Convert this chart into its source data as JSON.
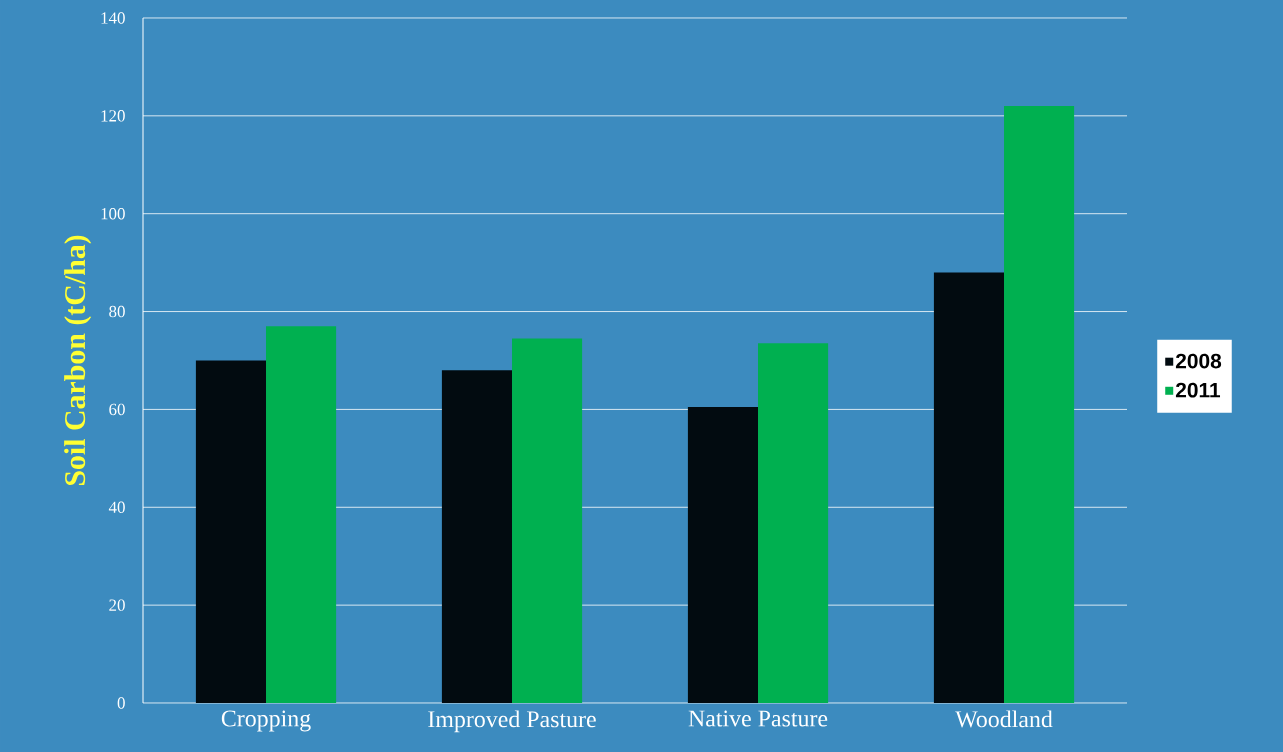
{
  "chart_data": {
    "type": "bar",
    "ylabel": "Soil Carbon (tC/ha)",
    "categories": [
      "Cropping",
      "Improved Pasture",
      "Native Pasture",
      "Woodland"
    ],
    "series": [
      {
        "name": "2008",
        "color": "#020b10",
        "values": [
          70,
          68,
          60.5,
          88
        ]
      },
      {
        "name": "2011",
        "color": "#00b050",
        "values": [
          77,
          74.5,
          73.5,
          122
        ]
      }
    ],
    "ylim": [
      0,
      140
    ],
    "yticks": [
      0,
      20,
      40,
      60,
      80,
      100,
      120,
      140
    ],
    "grid": "y",
    "legend": "right"
  }
}
